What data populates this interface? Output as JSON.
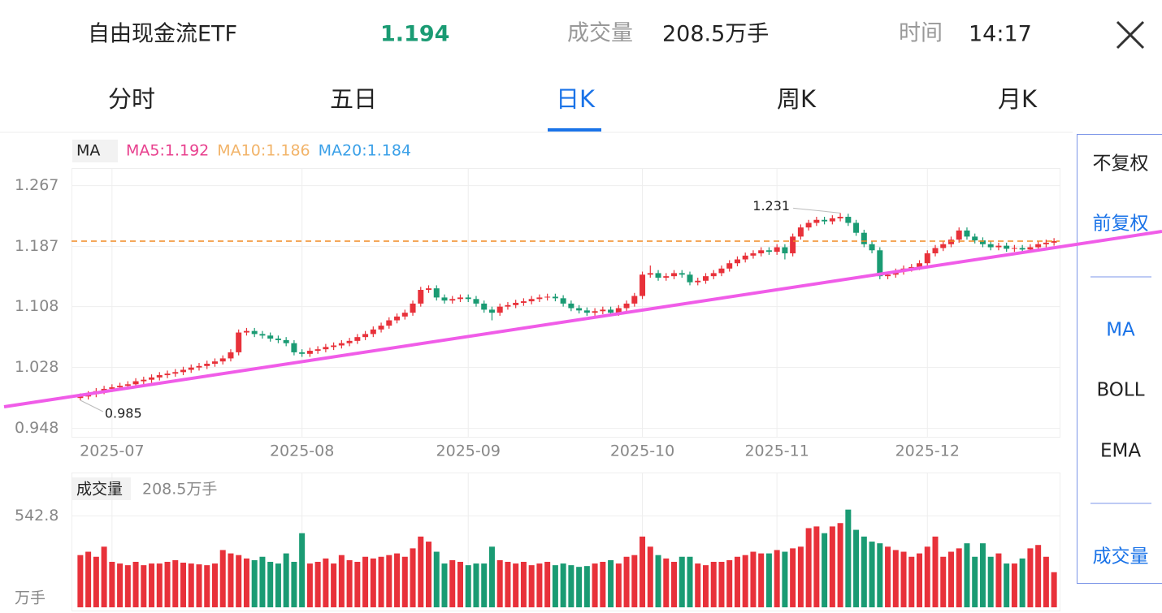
{
  "header": {
    "name": "自由现金流ETF",
    "price": "1.194",
    "volume_label": "成交量",
    "volume": "208.5万手",
    "time_label": "时间",
    "time": "14:17"
  },
  "tabs": [
    "分时",
    "五日",
    "日K",
    "周K",
    "月K"
  ],
  "side_menu": [
    "不复权",
    "前复权",
    "MA",
    "BOLL",
    "EMA",
    "成交量"
  ],
  "chart_data": {
    "type": "candlestick",
    "up_color": "#e8313a",
    "down_color": "#1a9b73",
    "legend": {
      "label": "MA",
      "items": [
        {
          "name": "MA5:1.192",
          "color": "#e8408e"
        },
        {
          "name": "MA10:1.186",
          "color": "#f2b46a"
        },
        {
          "name": "MA20:1.184",
          "color": "#3aa0e8"
        }
      ]
    },
    "categories": [
      null,
      null,
      null,
      null,
      "2025-07",
      null,
      null,
      null,
      null,
      null,
      null,
      null,
      null,
      null,
      null,
      null,
      null,
      null,
      null,
      null,
      null,
      null,
      null,
      null,
      null,
      null,
      null,
      null,
      "2025-08",
      null,
      null,
      null,
      null,
      null,
      null,
      null,
      null,
      null,
      null,
      null,
      null,
      null,
      null,
      null,
      null,
      null,
      null,
      null,
      null,
      "2025-09",
      null,
      null,
      null,
      null,
      null,
      null,
      null,
      null,
      null,
      null,
      null,
      null,
      null,
      null,
      null,
      null,
      null,
      null,
      null,
      null,
      null,
      "2025-10",
      null,
      null,
      null,
      null,
      null,
      null,
      null,
      null,
      null,
      null,
      null,
      null,
      null,
      null,
      null,
      null,
      "2025-11",
      null,
      null,
      null,
      null,
      null,
      null,
      null,
      null,
      null,
      null,
      null,
      null,
      null,
      null,
      null,
      null,
      null,
      null,
      "2025-12",
      null,
      null,
      null,
      null,
      null,
      null,
      null,
      null,
      null,
      null,
      null,
      null,
      null,
      null,
      null,
      null
    ],
    "open": [
      0.988,
      0.99,
      0.993,
      0.997,
      1.0,
      1.002,
      1.004,
      1.006,
      1.01,
      1.012,
      1.015,
      1.018,
      1.02,
      1.022,
      1.025,
      1.028,
      1.03,
      1.033,
      1.036,
      1.04,
      1.048,
      1.074,
      1.076,
      1.072,
      1.07,
      1.066,
      1.064,
      1.06,
      1.048,
      1.046,
      1.05,
      1.052,
      1.055,
      1.057,
      1.06,
      1.063,
      1.068,
      1.072,
      1.078,
      1.083,
      1.09,
      1.095,
      1.1,
      1.112,
      1.13,
      1.132,
      1.12,
      1.116,
      1.118,
      1.12,
      1.118,
      1.112,
      1.104,
      1.1,
      1.108,
      1.11,
      1.113,
      1.115,
      1.118,
      1.12,
      1.121,
      1.119,
      1.112,
      1.106,
      1.103,
      1.1,
      1.102,
      1.104,
      1.1,
      1.106,
      1.112,
      1.122,
      1.15,
      1.152,
      1.146,
      1.148,
      1.152,
      1.15,
      1.14,
      1.142,
      1.148,
      1.152,
      1.158,
      1.165,
      1.17,
      1.175,
      1.178,
      1.182,
      1.18,
      1.186,
      1.178,
      1.2,
      1.212,
      1.218,
      1.222,
      1.22,
      1.224,
      1.226,
      1.218,
      1.205,
      1.19,
      1.182,
      1.148,
      1.15,
      1.154,
      1.158,
      1.16,
      1.165,
      1.178,
      1.185,
      1.19,
      1.196,
      1.208,
      1.2,
      1.195,
      1.19,
      1.186,
      1.188,
      1.184,
      1.185,
      1.183,
      1.186,
      1.19,
      1.192
    ],
    "high": [
      0.994,
      0.997,
      1.001,
      1.004,
      1.006,
      1.008,
      1.01,
      1.014,
      1.016,
      1.019,
      1.022,
      1.024,
      1.026,
      1.029,
      1.032,
      1.034,
      1.037,
      1.04,
      1.044,
      1.052,
      1.078,
      1.08,
      1.08,
      1.076,
      1.074,
      1.07,
      1.068,
      1.064,
      1.052,
      1.054,
      1.056,
      1.059,
      1.061,
      1.064,
      1.067,
      1.072,
      1.076,
      1.082,
      1.087,
      1.094,
      1.099,
      1.104,
      1.116,
      1.134,
      1.136,
      1.136,
      1.124,
      1.122,
      1.124,
      1.124,
      1.122,
      1.116,
      1.108,
      1.112,
      1.114,
      1.117,
      1.119,
      1.122,
      1.124,
      1.125,
      1.125,
      1.123,
      1.116,
      1.11,
      1.107,
      1.106,
      1.108,
      1.108,
      1.11,
      1.116,
      1.126,
      1.154,
      1.162,
      1.156,
      1.152,
      1.156,
      1.156,
      1.154,
      1.146,
      1.152,
      1.156,
      1.162,
      1.169,
      1.174,
      1.179,
      1.182,
      1.186,
      1.186,
      1.19,
      1.19,
      1.204,
      1.216,
      1.222,
      1.226,
      1.226,
      1.228,
      1.231,
      1.23,
      1.222,
      1.209,
      1.194,
      1.186,
      1.154,
      1.158,
      1.162,
      1.164,
      1.169,
      1.182,
      1.189,
      1.194,
      1.2,
      1.212,
      1.212,
      1.204,
      1.199,
      1.194,
      1.192,
      1.192,
      1.189,
      1.189,
      1.19,
      1.194,
      1.196,
      1.198
    ],
    "low": [
      0.985,
      0.986,
      0.989,
      0.993,
      0.996,
      0.998,
      1.0,
      1.002,
      1.006,
      1.008,
      1.011,
      1.014,
      1.016,
      1.018,
      1.021,
      1.024,
      1.026,
      1.029,
      1.032,
      1.036,
      1.044,
      1.07,
      1.068,
      1.066,
      1.062,
      1.06,
      1.056,
      1.044,
      1.042,
      1.042,
      1.046,
      1.048,
      1.051,
      1.053,
      1.056,
      1.059,
      1.064,
      1.068,
      1.074,
      1.079,
      1.086,
      1.091,
      1.096,
      1.108,
      1.126,
      1.116,
      1.112,
      1.112,
      1.114,
      1.114,
      1.108,
      1.1,
      1.09,
      1.096,
      1.104,
      1.106,
      1.109,
      1.111,
      1.114,
      1.116,
      1.115,
      1.108,
      1.102,
      1.099,
      1.096,
      1.096,
      1.098,
      1.096,
      1.096,
      1.102,
      1.108,
      1.118,
      1.146,
      1.142,
      1.142,
      1.144,
      1.146,
      1.136,
      1.136,
      1.138,
      1.144,
      1.148,
      1.154,
      1.161,
      1.166,
      1.171,
      1.174,
      1.176,
      1.176,
      1.17,
      1.174,
      1.196,
      1.208,
      1.214,
      1.216,
      1.216,
      1.22,
      1.214,
      1.201,
      1.186,
      1.178,
      1.144,
      1.144,
      1.146,
      1.15,
      1.154,
      1.156,
      1.161,
      1.174,
      1.181,
      1.186,
      1.192,
      1.196,
      1.191,
      1.186,
      1.182,
      1.182,
      1.18,
      1.18,
      1.179,
      1.179,
      1.182,
      1.186,
      1.188
    ],
    "close": [
      0.99,
      0.993,
      0.997,
      1.0,
      1.002,
      1.004,
      1.006,
      1.01,
      1.012,
      1.015,
      1.018,
      1.02,
      1.022,
      1.025,
      1.028,
      1.03,
      1.033,
      1.036,
      1.04,
      1.048,
      1.074,
      1.076,
      1.072,
      1.07,
      1.066,
      1.064,
      1.06,
      1.048,
      1.046,
      1.05,
      1.052,
      1.055,
      1.057,
      1.06,
      1.063,
      1.068,
      1.072,
      1.078,
      1.083,
      1.09,
      1.095,
      1.1,
      1.112,
      1.13,
      1.132,
      1.12,
      1.116,
      1.118,
      1.12,
      1.118,
      1.112,
      1.104,
      1.1,
      1.108,
      1.11,
      1.113,
      1.115,
      1.118,
      1.12,
      1.121,
      1.119,
      1.112,
      1.106,
      1.103,
      1.1,
      1.102,
      1.104,
      1.1,
      1.106,
      1.112,
      1.122,
      1.15,
      1.152,
      1.146,
      1.148,
      1.152,
      1.15,
      1.14,
      1.142,
      1.148,
      1.152,
      1.158,
      1.165,
      1.17,
      1.175,
      1.178,
      1.182,
      1.18,
      1.186,
      1.178,
      1.2,
      1.212,
      1.218,
      1.222,
      1.22,
      1.224,
      1.226,
      1.218,
      1.205,
      1.19,
      1.182,
      1.148,
      1.15,
      1.154,
      1.158,
      1.16,
      1.165,
      1.178,
      1.185,
      1.19,
      1.196,
      1.208,
      1.2,
      1.195,
      1.19,
      1.186,
      1.188,
      1.184,
      1.185,
      1.183,
      1.186,
      1.19,
      1.192,
      1.194
    ],
    "ylim": [
      0.937,
      1.29
    ],
    "yticks": [
      0.948,
      1.028,
      1.108,
      1.187,
      1.267
    ],
    "grid": true,
    "volume": {
      "label": "成交量",
      "total": "208.5万手",
      "unit": "万手",
      "ylim": [
        0,
        800
      ],
      "yticks": [
        542.8
      ],
      "values": [
        310,
        330,
        300,
        360,
        270,
        260,
        250,
        270,
        250,
        260,
        260,
        270,
        280,
        265,
        260,
        255,
        250,
        260,
        340,
        320,
        310,
        290,
        280,
        300,
        270,
        260,
        320,
        270,
        440,
        260,
        270,
        290,
        260,
        310,
        280,
        270,
        300,
        290,
        300,
        310,
        320,
        300,
        350,
        420,
        390,
        330,
        260,
        280,
        270,
        250,
        260,
        260,
        360,
        280,
        270,
        260,
        270,
        250,
        260,
        270,
        250,
        260,
        250,
        240,
        245,
        260,
        270,
        280,
        260,
        300,
        310,
        420,
        360,
        310,
        290,
        270,
        300,
        300,
        260,
        250,
        270,
        270,
        280,
        300,
        310,
        330,
        320,
        320,
        340,
        330,
        350,
        360,
        470,
        480,
        440,
        480,
        500,
        580,
        460,
        420,
        390,
        380,
        360,
        340,
        330,
        300,
        320,
        360,
        420,
        300,
        330,
        350,
        380,
        300,
        380,
        300,
        320,
        260,
        260,
        290,
        350,
        370,
        300,
        208.5
      ]
    }
  }
}
